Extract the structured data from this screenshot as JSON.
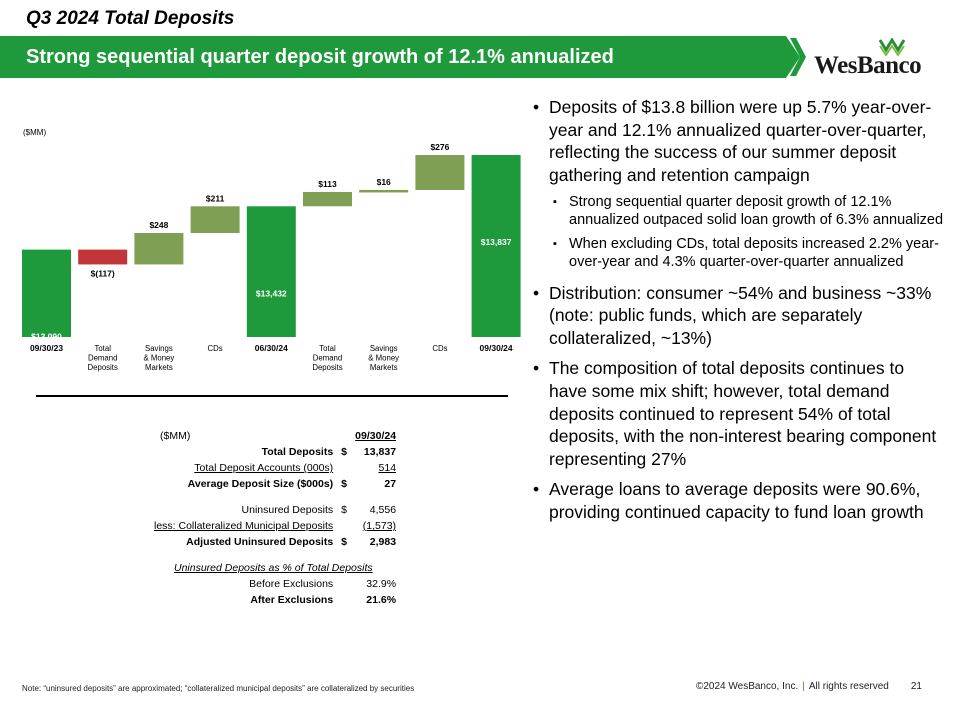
{
  "header": {
    "title": "Q3 2024 Total Deposits",
    "banner": "Strong sequential quarter deposit growth of 12.1% annualized",
    "logo_text": "WesBanco"
  },
  "chart_data": {
    "type": "bar",
    "subtype": "waterfall",
    "unit_label": "($MM)",
    "categories": [
      "09/30/23",
      "Total Demand Deposits",
      "Savings & Money Markets",
      "CDs",
      "06/30/24",
      "Total Demand Deposits",
      "Savings & Money Markets",
      "CDs",
      "09/30/24"
    ],
    "category_lines": [
      [
        "09/30/23"
      ],
      [
        "Total",
        "Demand",
        "Deposits"
      ],
      [
        "Savings",
        "& Money",
        "Markets"
      ],
      [
        "CDs"
      ],
      [
        "06/30/24"
      ],
      [
        "Total",
        "Demand",
        "Deposits"
      ],
      [
        "Savings",
        "& Money",
        "Markets"
      ],
      [
        "CDs"
      ],
      [
        "09/30/24"
      ]
    ],
    "values": [
      13090,
      -117,
      248,
      211,
      13432,
      113,
      16,
      276,
      13837
    ],
    "bar_kind": [
      "total",
      "decrease",
      "increase",
      "increase",
      "total",
      "increase",
      "increase",
      "increase",
      "total"
    ],
    "labels": [
      "$13,090",
      "$(117)",
      "$248",
      "$211",
      "$13,432",
      "$113",
      "$16",
      "$276",
      "$13,837"
    ],
    "colors": {
      "total": "#1e9a3d",
      "increase": "#7f9f54",
      "decrease": "#c0343a"
    }
  },
  "table": {
    "unit": "($MM)",
    "column_header": "09/30/24",
    "rows": [
      {
        "label": "Total Deposits",
        "cur": "$",
        "value": "13,837"
      },
      {
        "label": "Total Deposit Accounts (000s)",
        "cur": "",
        "value": "514"
      },
      {
        "label": "Average Deposit Size ($000s)",
        "cur": "$",
        "value": "27"
      },
      {
        "label": "Uninsured Deposits",
        "cur": "$",
        "value": "4,556"
      },
      {
        "label": "less: Collateralized Municipal Deposits",
        "cur": "",
        "value": "(1,573)"
      },
      {
        "label": "Adjusted Uninsured Deposits",
        "cur": "$",
        "value": "2,983"
      },
      {
        "label": "Uninsured Deposits as % of Total Deposits",
        "cur": "",
        "value": ""
      },
      {
        "label": "Before Exclusions",
        "cur": "",
        "value": "32.9%"
      },
      {
        "label": "After Exclusions",
        "cur": "",
        "value": "21.6%"
      }
    ]
  },
  "bullets": {
    "b1": "Deposits of $13.8 billion were up 5.7% year-over-year and 12.1% annualized quarter-over-quarter, reflecting the success of our summer deposit gathering and retention campaign",
    "b1_sub1": "Strong sequential quarter deposit growth of 12.1% annualized outpaced solid loan growth of 6.3% annualized",
    "b1_sub2": "When excluding CDs, total deposits increased 2.2% year-over-year and 4.3% quarter-over-quarter annualized",
    "b2": "Distribution: consumer ~54% and business ~33% (note: public funds, which are separately collateralized, ~13%)",
    "b3": "The composition of total deposits continues to have some mix shift; however, total demand deposits continued to represent 54% of total deposits, with the non-interest bearing component representing 27%",
    "b4": "Average loans to average deposits were 90.6%, providing continued capacity to fund loan growth"
  },
  "footer": {
    "note": "Note: “uninsured deposits” are approximated; “collateralized municipal deposits” are collateralized by securities",
    "copyright": "©2024 WesBanco, Inc.",
    "separator": "|",
    "rights": "All rights reserved",
    "page": "21"
  }
}
